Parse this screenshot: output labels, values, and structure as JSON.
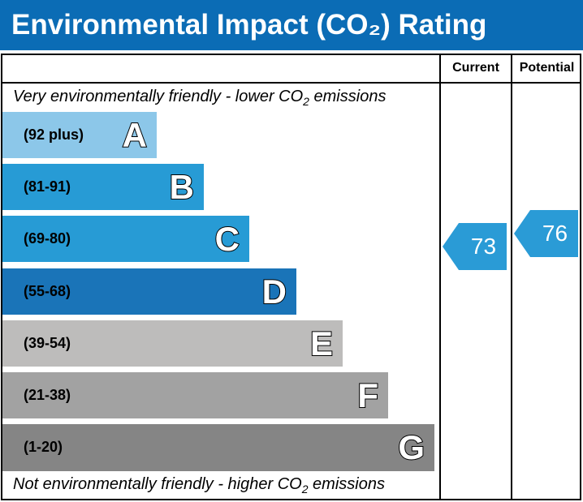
{
  "title": "Environmental Impact (CO₂) Rating",
  "columns": {
    "current": "Current",
    "potential": "Potential"
  },
  "top_note": {
    "text": "Very environmentally friendly - lower CO",
    "sub": "2",
    "after": " emissions"
  },
  "bottom_note": {
    "text": "Not environmentally friendly - higher CO",
    "sub": "2",
    "after": " emissions"
  },
  "chart_data": {
    "type": "bar",
    "bands": [
      {
        "letter": "A",
        "range": "(92 plus)",
        "color": "#8cc7e9"
      },
      {
        "letter": "B",
        "range": "(81-91)",
        "color": "#279bd5"
      },
      {
        "letter": "C",
        "range": "(69-80)",
        "color": "#279bd5"
      },
      {
        "letter": "D",
        "range": "(55-68)",
        "color": "#1a74b8"
      },
      {
        "letter": "E",
        "range": "(39-54)",
        "color": "#bdbcbb"
      },
      {
        "letter": "F",
        "range": "(21-38)",
        "color": "#a2a2a2"
      },
      {
        "letter": "G",
        "range": "(1-20)",
        "color": "#858585"
      }
    ],
    "current": {
      "value": "73",
      "band": "C",
      "color": "#2a9bd6"
    },
    "potential": {
      "value": "76",
      "band": "C",
      "color": "#2a9bd6"
    }
  }
}
